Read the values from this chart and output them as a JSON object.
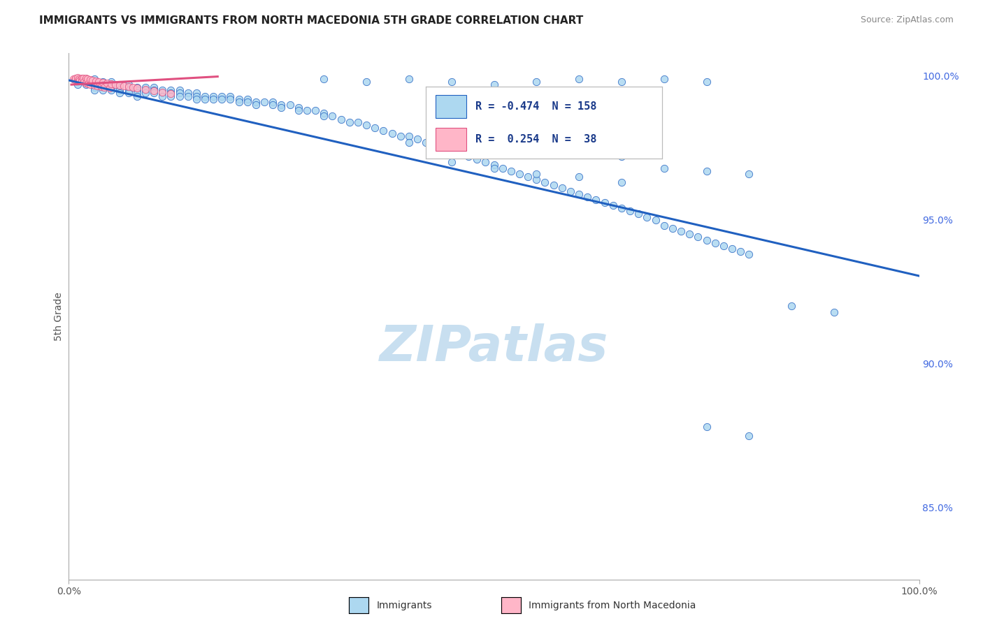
{
  "title": "IMMIGRANTS VS IMMIGRANTS FROM NORTH MACEDONIA 5TH GRADE CORRELATION CHART",
  "source": "Source: ZipAtlas.com",
  "ylabel": "5th Grade",
  "watermark": "ZIPatlas",
  "y_tick_labels_right": [
    "100.0%",
    "95.0%",
    "90.0%",
    "85.0%"
  ],
  "y_tick_positions_right": [
    1.0,
    0.95,
    0.9,
    0.85
  ],
  "blue_r": "-0.474",
  "blue_n": "158",
  "pink_r": "0.254",
  "pink_n": "38",
  "blue_scatter_x": [
    0.01,
    0.01,
    0.01,
    0.01,
    0.02,
    0.02,
    0.02,
    0.02,
    0.02,
    0.03,
    0.03,
    0.03,
    0.03,
    0.03,
    0.04,
    0.04,
    0.04,
    0.04,
    0.05,
    0.05,
    0.05,
    0.05,
    0.06,
    0.06,
    0.06,
    0.06,
    0.07,
    0.07,
    0.07,
    0.07,
    0.08,
    0.08,
    0.08,
    0.08,
    0.09,
    0.09,
    0.09,
    0.1,
    0.1,
    0.1,
    0.11,
    0.11,
    0.11,
    0.12,
    0.12,
    0.12,
    0.13,
    0.13,
    0.13,
    0.14,
    0.14,
    0.15,
    0.15,
    0.15,
    0.16,
    0.16,
    0.17,
    0.17,
    0.18,
    0.18,
    0.19,
    0.19,
    0.2,
    0.2,
    0.21,
    0.21,
    0.22,
    0.22,
    0.23,
    0.24,
    0.24,
    0.25,
    0.25,
    0.26,
    0.27,
    0.27,
    0.28,
    0.29,
    0.3,
    0.3,
    0.31,
    0.32,
    0.33,
    0.34,
    0.35,
    0.36,
    0.37,
    0.38,
    0.39,
    0.4,
    0.41,
    0.42,
    0.43,
    0.44,
    0.45,
    0.46,
    0.47,
    0.48,
    0.49,
    0.5,
    0.51,
    0.52,
    0.53,
    0.54,
    0.55,
    0.56,
    0.57,
    0.58,
    0.59,
    0.6,
    0.61,
    0.62,
    0.63,
    0.64,
    0.65,
    0.66,
    0.67,
    0.68,
    0.69,
    0.7,
    0.71,
    0.72,
    0.73,
    0.74,
    0.75,
    0.76,
    0.77,
    0.78,
    0.79,
    0.8,
    0.55,
    0.6,
    0.65,
    0.7,
    0.75,
    0.4,
    0.45,
    0.5,
    0.3,
    0.35,
    0.6,
    0.65,
    0.55,
    0.5,
    0.45,
    0.4,
    0.7,
    0.75,
    0.8,
    0.85,
    0.9,
    0.65,
    0.6,
    0.55,
    0.5,
    0.45,
    0.75,
    0.8
  ],
  "blue_scatter_y": [
    0.999,
    0.999,
    0.998,
    0.997,
    0.999,
    0.999,
    0.998,
    0.998,
    0.997,
    0.999,
    0.998,
    0.997,
    0.996,
    0.995,
    0.998,
    0.997,
    0.996,
    0.995,
    0.998,
    0.997,
    0.996,
    0.995,
    0.997,
    0.996,
    0.995,
    0.994,
    0.997,
    0.996,
    0.995,
    0.994,
    0.996,
    0.995,
    0.994,
    0.993,
    0.996,
    0.995,
    0.994,
    0.996,
    0.995,
    0.994,
    0.995,
    0.994,
    0.993,
    0.995,
    0.994,
    0.993,
    0.995,
    0.994,
    0.993,
    0.994,
    0.993,
    0.994,
    0.993,
    0.992,
    0.993,
    0.992,
    0.993,
    0.992,
    0.993,
    0.992,
    0.993,
    0.992,
    0.992,
    0.991,
    0.992,
    0.991,
    0.991,
    0.99,
    0.991,
    0.991,
    0.99,
    0.99,
    0.989,
    0.99,
    0.989,
    0.988,
    0.988,
    0.988,
    0.987,
    0.986,
    0.986,
    0.985,
    0.984,
    0.984,
    0.983,
    0.982,
    0.981,
    0.98,
    0.979,
    0.979,
    0.978,
    0.977,
    0.976,
    0.975,
    0.974,
    0.973,
    0.972,
    0.971,
    0.97,
    0.969,
    0.968,
    0.967,
    0.966,
    0.965,
    0.964,
    0.963,
    0.962,
    0.961,
    0.96,
    0.959,
    0.958,
    0.957,
    0.956,
    0.955,
    0.954,
    0.953,
    0.952,
    0.951,
    0.95,
    0.948,
    0.947,
    0.946,
    0.945,
    0.944,
    0.943,
    0.942,
    0.941,
    0.94,
    0.939,
    0.938,
    0.998,
    0.999,
    0.998,
    0.999,
    0.998,
    0.999,
    0.998,
    0.997,
    0.999,
    0.998,
    0.973,
    0.972,
    0.975,
    0.976,
    0.974,
    0.977,
    0.968,
    0.967,
    0.966,
    0.92,
    0.918,
    0.963,
    0.965,
    0.966,
    0.968,
    0.97,
    0.878,
    0.875
  ],
  "pink_scatter_x": [
    0.005,
    0.007,
    0.008,
    0.01,
    0.01,
    0.012,
    0.013,
    0.015,
    0.015,
    0.017,
    0.018,
    0.02,
    0.02,
    0.022,
    0.023,
    0.025,
    0.025,
    0.028,
    0.03,
    0.032,
    0.033,
    0.035,
    0.038,
    0.04,
    0.042,
    0.045,
    0.048,
    0.05,
    0.055,
    0.06,
    0.065,
    0.07,
    0.075,
    0.08,
    0.09,
    0.1,
    0.11,
    0.12
  ],
  "pink_scatter_y": [
    0.999,
    0.9988,
    0.9992,
    0.9986,
    0.9994,
    0.9989,
    0.9985,
    0.9992,
    0.9983,
    0.9991,
    0.998,
    0.9993,
    0.9976,
    0.999,
    0.9973,
    0.9988,
    0.997,
    0.9986,
    0.9968,
    0.9983,
    0.9966,
    0.998,
    0.9963,
    0.9978,
    0.996,
    0.9975,
    0.9957,
    0.9973,
    0.997,
    0.9968,
    0.9965,
    0.9962,
    0.996,
    0.9958,
    0.9953,
    0.9948,
    0.9943,
    0.9938
  ],
  "blue_line_x": [
    0.0,
    1.0
  ],
  "blue_line_y": [
    0.9985,
    0.9305
  ],
  "pink_line_x": [
    0.003,
    0.175
  ],
  "pink_line_y": [
    0.997,
    0.9998
  ],
  "title_fontsize": 11,
  "source_fontsize": 9,
  "watermark_fontsize": 52,
  "watermark_color": "#c8dff0",
  "scatter_size": 55,
  "blue_scatter_color": "#add8f0",
  "pink_scatter_color": "#ffb6c8",
  "blue_line_color": "#2060c0",
  "pink_line_color": "#e05080",
  "background_color": "#ffffff",
  "grid_color": "#cccccc",
  "xlim": [
    0.0,
    1.0
  ],
  "ylim": [
    0.825,
    1.008
  ]
}
